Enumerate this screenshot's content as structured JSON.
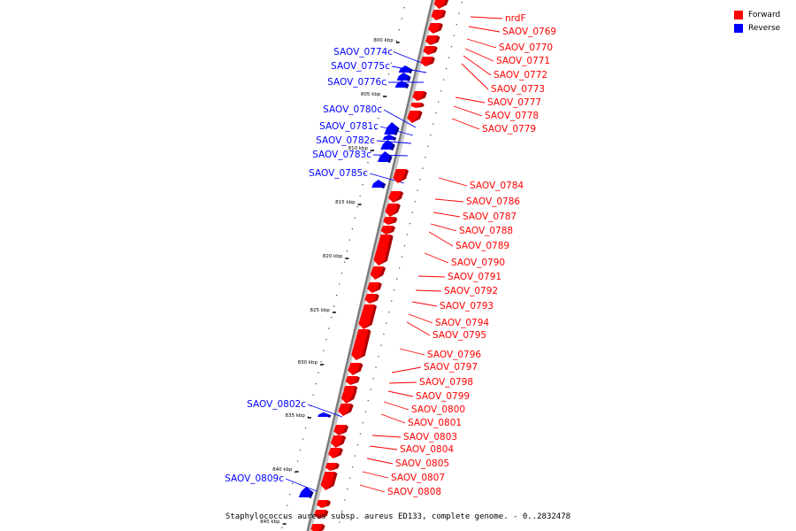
{
  "legend": {
    "forward_label": "Forward",
    "reverse_label": "Reverse",
    "forward_color": "#ff0000",
    "reverse_color": "#0000ff"
  },
  "caption": "Staphylococcus aureus subsp. aureus ED133, complete genome. - 0..2832478",
  "ticks": [
    "800 kbp",
    "805 kbp",
    "810 kbp",
    "815 kbp",
    "820 kbp",
    "825 kbp",
    "830 kbp",
    "835 kbp",
    "840 kbp",
    "845 kbp"
  ],
  "genes": [
    {
      "name": "nrdF",
      "strand": "forward"
    },
    {
      "name": "SAOV_0769",
      "strand": "forward"
    },
    {
      "name": "SAOV_0770",
      "strand": "forward"
    },
    {
      "name": "SAOV_0771",
      "strand": "forward"
    },
    {
      "name": "SAOV_0772",
      "strand": "forward"
    },
    {
      "name": "SAOV_0773",
      "strand": "forward"
    },
    {
      "name": "SAOV_0774c",
      "strand": "reverse"
    },
    {
      "name": "SAOV_0775c",
      "strand": "reverse"
    },
    {
      "name": "SAOV_0776c",
      "strand": "reverse"
    },
    {
      "name": "SAOV_0777",
      "strand": "forward"
    },
    {
      "name": "SAOV_0778",
      "strand": "forward"
    },
    {
      "name": "SAOV_0779",
      "strand": "forward"
    },
    {
      "name": "SAOV_0780c",
      "strand": "reverse"
    },
    {
      "name": "SAOV_0781c",
      "strand": "reverse"
    },
    {
      "name": "SAOV_0782c",
      "strand": "reverse"
    },
    {
      "name": "SAOV_0783c",
      "strand": "reverse"
    },
    {
      "name": "SAOV_0785c",
      "strand": "reverse"
    },
    {
      "name": "SAOV_0784",
      "strand": "forward"
    },
    {
      "name": "SAOV_0786",
      "strand": "forward"
    },
    {
      "name": "SAOV_0787",
      "strand": "forward"
    },
    {
      "name": "SAOV_0788",
      "strand": "forward"
    },
    {
      "name": "SAOV_0789",
      "strand": "forward"
    },
    {
      "name": "SAOV_0790",
      "strand": "forward"
    },
    {
      "name": "SAOV_0791",
      "strand": "forward"
    },
    {
      "name": "SAOV_0792",
      "strand": "forward"
    },
    {
      "name": "SAOV_0793",
      "strand": "forward"
    },
    {
      "name": "SAOV_0794",
      "strand": "forward"
    },
    {
      "name": "SAOV_0795",
      "strand": "forward"
    },
    {
      "name": "SAOV_0796",
      "strand": "forward"
    },
    {
      "name": "SAOV_0797",
      "strand": "forward"
    },
    {
      "name": "SAOV_0798",
      "strand": "forward"
    },
    {
      "name": "SAOV_0799",
      "strand": "forward"
    },
    {
      "name": "SAOV_0800",
      "strand": "forward"
    },
    {
      "name": "SAOV_0801",
      "strand": "forward"
    },
    {
      "name": "SAOV_0802c",
      "strand": "reverse"
    },
    {
      "name": "SAOV_0803",
      "strand": "forward"
    },
    {
      "name": "SAOV_0804",
      "strand": "forward"
    },
    {
      "name": "SAOV_0805",
      "strand": "forward"
    },
    {
      "name": "SAOV_0807",
      "strand": "forward"
    },
    {
      "name": "SAOV_0808",
      "strand": "forward"
    },
    {
      "name": "SAOV_0809c",
      "strand": "reverse"
    }
  ]
}
